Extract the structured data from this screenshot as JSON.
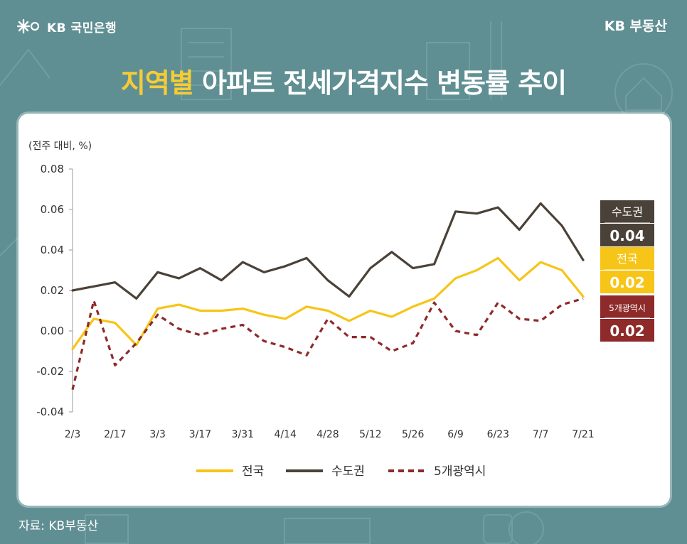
{
  "brand": {
    "bank": "KB 국민은행",
    "service": "KB 부동산"
  },
  "title": {
    "highlight": "지역별",
    "rest": " 아파트 전세가격지수 변동률 추이"
  },
  "source": "자료: KB부동산",
  "colors": {
    "background": "#5f8f93",
    "national": "#f6c518",
    "capital": "#4a4238",
    "metro5": "#8e2a2a",
    "highlight": "#f6cc36"
  },
  "chart_data": {
    "type": "line",
    "ylabel": "(전주 대비, %)",
    "ylim": [
      -0.04,
      0.08
    ],
    "yticks": [
      "0.08",
      "0.06",
      "0.04",
      "0.02",
      "0.00",
      "-0.02",
      "-0.04"
    ],
    "x_tick_labels": [
      "2/3",
      "2/17",
      "3/3",
      "3/17",
      "3/31",
      "4/14",
      "4/28",
      "5/12",
      "5/26",
      "6/9",
      "6/23",
      "7/7",
      "7/21"
    ],
    "x": [
      "2/3",
      "2/10",
      "2/17",
      "2/24",
      "3/3",
      "3/10",
      "3/17",
      "3/24",
      "3/31",
      "4/7",
      "4/14",
      "4/21",
      "4/28",
      "5/5",
      "5/12",
      "5/19",
      "5/26",
      "6/2",
      "6/9",
      "6/16",
      "6/23",
      "6/30",
      "7/7",
      "7/14",
      "7/21"
    ],
    "series": [
      {
        "name": "전국",
        "style": "solid",
        "values": [
          -0.009,
          0.006,
          0.004,
          -0.007,
          0.011,
          0.013,
          0.01,
          0.01,
          0.011,
          0.008,
          0.006,
          0.012,
          0.01,
          0.005,
          0.01,
          0.007,
          0.012,
          0.016,
          0.026,
          0.03,
          0.036,
          0.025,
          0.034,
          0.03,
          0.017
        ]
      },
      {
        "name": "수도권",
        "style": "solid",
        "values": [
          0.02,
          0.022,
          0.024,
          0.016,
          0.029,
          0.026,
          0.031,
          0.025,
          0.034,
          0.029,
          0.032,
          0.036,
          0.025,
          0.017,
          0.031,
          0.039,
          0.031,
          0.033,
          0.059,
          0.058,
          0.061,
          0.05,
          0.063,
          0.052,
          0.035
        ]
      },
      {
        "name": "5개광역시",
        "style": "dashed",
        "values": [
          -0.029,
          0.015,
          -0.017,
          -0.006,
          0.008,
          0.001,
          -0.002,
          0.001,
          0.003,
          -0.005,
          -0.008,
          -0.012,
          0.006,
          -0.003,
          -0.003,
          -0.01,
          -0.006,
          0.014,
          0.0,
          -0.002,
          0.014,
          0.006,
          0.005,
          0.013,
          0.016
        ]
      }
    ],
    "end_labels": [
      {
        "name": "수도권",
        "value": "0.04"
      },
      {
        "name": "전국",
        "value": "0.02"
      },
      {
        "name": "5개광역시",
        "value": "0.02"
      }
    ],
    "legend": [
      "전국",
      "수도권",
      "5개광역시"
    ],
    "legend_position": "bottom",
    "grid": false
  }
}
